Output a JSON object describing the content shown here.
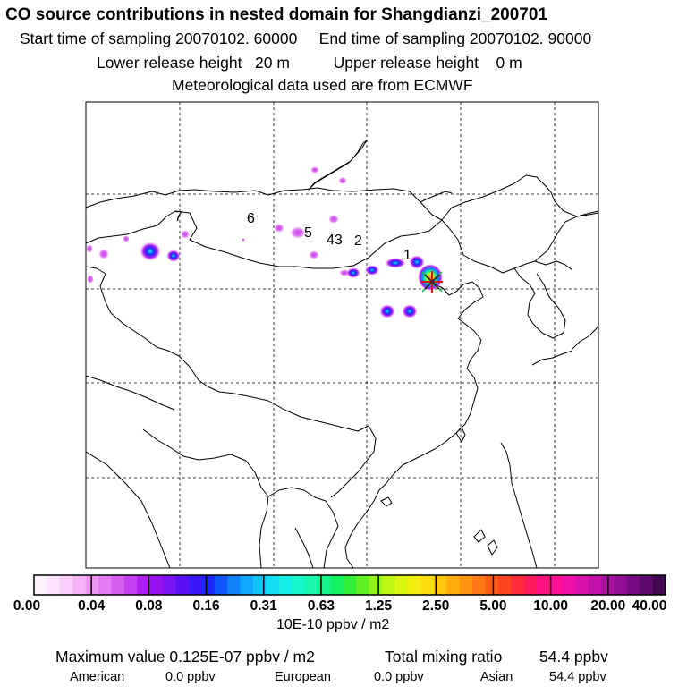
{
  "header": {
    "title": "CO  source contributions in nested domain for Shangdianzi_200701",
    "sampling_line": "Start time of sampling 20070102. 60000     End time of sampling 20070102. 90000",
    "height_line": "Lower release height   20 m          Upper release height    0 m",
    "met_line": "Meteorological data used are from ECMWF"
  },
  "map": {
    "site_marker": "receptor-star-icon",
    "trajectory_labels": [
      "1",
      "2",
      "43",
      "5",
      "6",
      "7"
    ]
  },
  "colorbar": {
    "tick_labels": [
      "0.00",
      "0.04",
      "0.08",
      "0.16",
      "0.31",
      "0.63",
      "1.25",
      "2.50",
      "5.00",
      "10.00",
      "20.00",
      "40.00"
    ],
    "units": "10E-10 ppbv / m2",
    "colors": [
      "#fff2ff",
      "#ffe2ff",
      "#fbcdfb",
      "#f5b3f5",
      "#ee98f4",
      "#e37cf2",
      "#d560f0",
      "#c43ff0",
      "#b21df0",
      "#9812f0",
      "#7a14f2",
      "#5a10f4",
      "#3a18f7",
      "#1d28fa",
      "#1255fb",
      "#0f82fb",
      "#0fa8fb",
      "#10c4f8",
      "#12ddf2",
      "#16f0e4",
      "#18f6cc",
      "#18f7ad",
      "#16f58a",
      "#14f062",
      "#30ee3a",
      "#62f022",
      "#92f418",
      "#bcf613",
      "#dcf512",
      "#f3ee10",
      "#ffdc0d",
      "#ffc70c",
      "#ffae0c",
      "#ff940e",
      "#ff7a12",
      "#ff5e18",
      "#ff4420",
      "#ff2c3c",
      "#ff1a5e",
      "#ff1280",
      "#ff1198",
      "#f012a8",
      "#dc12ac",
      "#c410a8",
      "#aa10a0",
      "#920e94",
      "#780c82",
      "#5c0a6c",
      "#420850"
    ]
  },
  "stats": {
    "max_line": "Maximum value  0.125E-07 ppbv / m2",
    "total_label": "Total mixing ratio",
    "total_value": "54.4 ppbv",
    "regions": [
      {
        "name": "American",
        "value": "0.0 ppbv"
      },
      {
        "name": "European",
        "value": "0.0 ppbv"
      },
      {
        "name": "Asian",
        "value": "54.4 ppbv"
      }
    ]
  }
}
